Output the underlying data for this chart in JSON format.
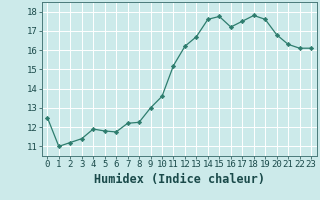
{
  "x": [
    0,
    1,
    2,
    3,
    4,
    5,
    6,
    7,
    8,
    9,
    10,
    11,
    12,
    13,
    14,
    15,
    16,
    17,
    18,
    19,
    20,
    21,
    22,
    23
  ],
  "y": [
    12.5,
    11.0,
    11.2,
    11.4,
    11.9,
    11.8,
    11.75,
    12.2,
    12.25,
    13.0,
    13.6,
    15.2,
    16.2,
    16.7,
    17.6,
    17.75,
    17.2,
    17.5,
    17.8,
    17.6,
    16.8,
    16.3,
    16.1,
    16.1
  ],
  "xlabel": "Humidex (Indice chaleur)",
  "ylim": [
    10.5,
    18.5
  ],
  "xlim": [
    -0.5,
    23.5
  ],
  "yticks": [
    11,
    12,
    13,
    14,
    15,
    16,
    17,
    18
  ],
  "xticks": [
    0,
    1,
    2,
    3,
    4,
    5,
    6,
    7,
    8,
    9,
    10,
    11,
    12,
    13,
    14,
    15,
    16,
    17,
    18,
    19,
    20,
    21,
    22,
    23
  ],
  "line_color": "#2e7d6e",
  "marker": "D",
  "marker_size": 2.2,
  "bg_color": "#cceaea",
  "grid_color": "#ffffff",
  "tick_label_fontsize": 6.5,
  "xlabel_fontsize": 8.5,
  "spine_color": "#4a7a7a"
}
